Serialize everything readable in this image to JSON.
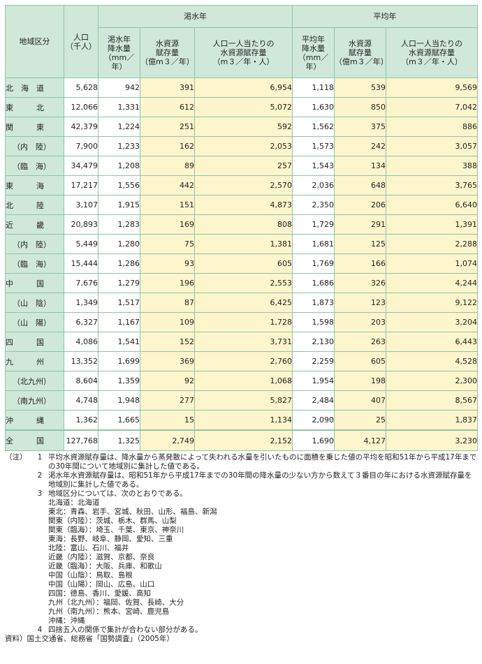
{
  "table": {
    "header": {
      "region": "地域区分",
      "population": "人口\n（千人）",
      "drought_group": "渇水年",
      "average_group": "平均年",
      "drought_precip": "渇水年\n降水量\n（mm／年）",
      "drought_resource": "水資源\n賦存量\n（億m３／年）",
      "drought_percap": "人口一人当たりの\n水資源賦存量\n（m３／年・人）",
      "avg_precip": "平均年\n降水量\n（mm／年）",
      "avg_resource": "水資源\n賦存量\n（億m３／年）",
      "avg_percap": "人口一人当たりの\n水資源賦存量\n（m３／年・人）"
    },
    "rows": [
      {
        "region": "北　海　道",
        "indent": false,
        "pop": "5,628",
        "d1": "942",
        "d2": "391",
        "d3": "6,954",
        "a1": "1,118",
        "a2": "539",
        "a3": "9,569"
      },
      {
        "region": "東　　　北",
        "indent": false,
        "pop": "12,066",
        "d1": "1,331",
        "d2": "612",
        "d3": "5,072",
        "a1": "1,630",
        "a2": "850",
        "a3": "7,042"
      },
      {
        "region": "関　　　東",
        "indent": false,
        "pop": "42,379",
        "d1": "1,224",
        "d2": "251",
        "d3": "592",
        "a1": "1,562",
        "a2": "375",
        "a3": "886"
      },
      {
        "region": "（内　陸）",
        "indent": true,
        "pop": "7,900",
        "d1": "1,233",
        "d2": "162",
        "d3": "2,053",
        "a1": "1,573",
        "a2": "242",
        "a3": "3,057"
      },
      {
        "region": "（臨　海）",
        "indent": true,
        "pop": "34,479",
        "d1": "1,208",
        "d2": "89",
        "d3": "257",
        "a1": "1,543",
        "a2": "134",
        "a3": "388"
      },
      {
        "region": "東　　　海",
        "indent": false,
        "pop": "17,217",
        "d1": "1,556",
        "d2": "442",
        "d3": "2,570",
        "a1": "2,036",
        "a2": "648",
        "a3": "3,765"
      },
      {
        "region": "北　　　陸",
        "indent": false,
        "pop": "3,107",
        "d1": "1,915",
        "d2": "151",
        "d3": "4,873",
        "a1": "2,350",
        "a2": "206",
        "a3": "6,640"
      },
      {
        "region": "近　　　畿",
        "indent": false,
        "pop": "20,893",
        "d1": "1,283",
        "d2": "169",
        "d3": "808",
        "a1": "1,729",
        "a2": "291",
        "a3": "1,391"
      },
      {
        "region": "（内　陸）",
        "indent": true,
        "pop": "5,449",
        "d1": "1,280",
        "d2": "75",
        "d3": "1,381",
        "a1": "1,681",
        "a2": "125",
        "a3": "2,288"
      },
      {
        "region": "（臨　海）",
        "indent": true,
        "pop": "15,444",
        "d1": "1,286",
        "d2": "93",
        "d3": "605",
        "a1": "1,769",
        "a2": "166",
        "a3": "1,074"
      },
      {
        "region": "中　　　国",
        "indent": false,
        "pop": "7,676",
        "d1": "1,279",
        "d2": "196",
        "d3": "2,553",
        "a1": "1,686",
        "a2": "326",
        "a3": "4,244"
      },
      {
        "region": "（山　陰）",
        "indent": true,
        "pop": "1,349",
        "d1": "1,517",
        "d2": "87",
        "d3": "6,425",
        "a1": "1,873",
        "a2": "123",
        "a3": "9,122"
      },
      {
        "region": "（山　陽）",
        "indent": true,
        "pop": "6,327",
        "d1": "1,167",
        "d2": "109",
        "d3": "1,728",
        "a1": "1,598",
        "a2": "203",
        "a3": "3,204"
      },
      {
        "region": "四　　　国",
        "indent": false,
        "pop": "4,086",
        "d1": "1,541",
        "d2": "152",
        "d3": "3,731",
        "a1": "2,130",
        "a2": "263",
        "a3": "6,443"
      },
      {
        "region": "九　　　州",
        "indent": false,
        "pop": "13,352",
        "d1": "1,699",
        "d2": "369",
        "d3": "2,760",
        "a1": "2,259",
        "a2": "605",
        "a3": "4,528"
      },
      {
        "region": "（北九州）",
        "indent": true,
        "pop": "8,604",
        "d1": "1,359",
        "d2": "92",
        "d3": "1,068",
        "a1": "1,954",
        "a2": "198",
        "a3": "2,300"
      },
      {
        "region": "（南九州）",
        "indent": true,
        "pop": "4,748",
        "d1": "1,948",
        "d2": "277",
        "d3": "5,827",
        "a1": "2,484",
        "a2": "407",
        "a3": "8,567"
      },
      {
        "region": "沖　　　縄",
        "indent": false,
        "pop": "1,362",
        "d1": "1,665",
        "d2": "15",
        "d3": "1,134",
        "a1": "2,090",
        "a2": "25",
        "a3": "1,837"
      }
    ],
    "total": {
      "region": "全　　　国",
      "pop": "127,768",
      "d1": "1,325",
      "d2": "2,749",
      "d3": "2,152",
      "a1": "1,690",
      "a2": "4,127",
      "a3": "3,230"
    }
  },
  "notes": {
    "label": "（注）",
    "items": [
      {
        "num": "1",
        "text": "平均水資源賦存量は、降水量から蒸発散によって失われる水量を引いたものに面積を乗じた値の平均を昭和51年から平成17年までの30年間について地域別に集計した値である。"
      },
      {
        "num": "2",
        "text": "渇水年水資源賦存量は、昭和51年から平成17年までの30年間の降水量の少ない方から数えて３番目の年における水資源賦存量を地域別に集計した値である。"
      },
      {
        "num": "3",
        "text": "地域区分については、次のとおりである。"
      }
    ],
    "regions": [
      "北海道：北海道",
      "東北：青森、岩手、宮城、秋田、山形、福島、新潟",
      "関東（内陸）：茨城、栃木、群馬、山梨",
      "関東（臨海）：埼玉、千葉、東京、神奈川",
      "東海：長野、岐阜、静岡、愛知、三重",
      "北陸：富山、石川、福井",
      "近畿（内陸）：滋賀、京都、奈良",
      "近畿（臨海）：大阪、兵庫、和歌山",
      "中国（山陰）：鳥取、島根",
      "中国（山陽）：岡山、広島、山口",
      "四国：徳島、香川、愛媛、高知",
      "九州（北九州）：福岡、佐賀、長崎、大分",
      "九州（南九州）：熊本、宮崎、鹿児島",
      "沖縄：沖縄"
    ],
    "item4": {
      "num": "4",
      "text": "四捨五入の関係で集計が合わない部分がある。"
    },
    "source": "資料）国土交通省、総務省「国勢調査」（2005年）"
  }
}
